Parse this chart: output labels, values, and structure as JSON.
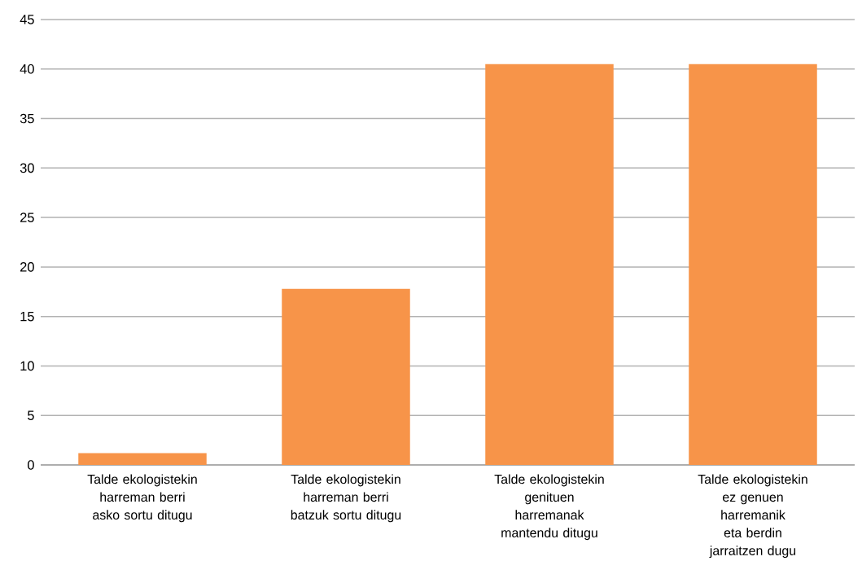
{
  "chart_data": {
    "type": "bar",
    "categories": [
      "Talde ekologistekin harreman berri asko sortu ditugu",
      "Talde ekologistekin harreman berri batzuk sortu ditugu",
      "Talde ekologistekin genituen harremanak mantendu ditugu",
      "Talde ekologistekin ez genuen harremanik eta berdin jarraitzen dugu"
    ],
    "values": [
      1.2,
      17.8,
      40.5,
      40.5
    ],
    "color": "#f79449",
    "ylim": [
      0,
      45
    ],
    "yticks": [
      0,
      5,
      10,
      15,
      20,
      25,
      30,
      35,
      40,
      45
    ],
    "grid": "y"
  }
}
